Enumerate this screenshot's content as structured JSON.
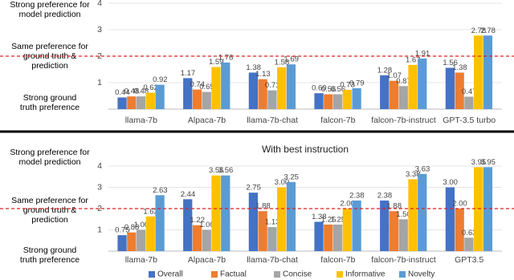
{
  "chart_data": [
    {
      "type": "bar",
      "annotations": [
        [
          "Strong preference for",
          "model prediction"
        ],
        [
          "Same preference for",
          "ground truth &",
          "prediction"
        ],
        [
          "Strong ground",
          "truth preference"
        ]
      ],
      "categories": [
        "llama-7b",
        "Alpaca-7b",
        "llama-7b-chat",
        "falcon-7b",
        "falcon-7b-instruct",
        "GPT-3.5 turbo"
      ],
      "series": [
        {
          "color": "#4472c4",
          "values": [
            0.44,
            1.17,
            1.38,
            0.6,
            1.28,
            1.56
          ],
          "value_labels": [
            "0.44",
            "1.17",
            "1.38",
            "0.60",
            "1.28",
            "1.56"
          ]
        },
        {
          "color": "#ed7d31",
          "values": [
            0.48,
            0.74,
            1.13,
            0.56,
            1.07,
            1.38
          ],
          "value_labels": [
            "0.48",
            "0.74",
            "1.13",
            "0.56",
            "1.07",
            "1.38"
          ]
        },
        {
          "color": "#a5a5a5",
          "values": [
            0.48,
            0.65,
            0.71,
            0.56,
            0.87,
            0.47
          ],
          "value_labels": [
            "0.48",
            "0.65",
            "0.71",
            "0.56",
            "0.87",
            "0.47"
          ]
        },
        {
          "color": "#ffc000",
          "values": [
            0.62,
            1.59,
            1.58,
            0.73,
            1.67,
            2.78
          ],
          "value_labels": [
            "0.62",
            "1.59",
            "1.58",
            "0.73",
            "1.67",
            "2.78"
          ]
        },
        {
          "color": "#5b9bd5",
          "values": [
            0.92,
            1.76,
            1.69,
            0.79,
            1.91,
            2.78
          ],
          "value_labels": [
            "0.92",
            "1.76",
            "1.69",
            "0.79",
            "1.91",
            "2.78"
          ]
        }
      ],
      "ylim": [
        0,
        4
      ],
      "yticks": [
        1,
        2,
        3,
        4
      ],
      "grid": true,
      "reference_line": 2,
      "reference_color": "#e02020"
    },
    {
      "type": "bar",
      "title": "With best instruction",
      "annotations": [
        [
          "Strong preference for",
          "model prediction"
        ],
        [
          "Same preference for",
          "ground truth &",
          "prediction"
        ],
        [
          "Strong ground",
          "truth preference"
        ]
      ],
      "categories": [
        "llama-7b",
        "Alpaca-7b",
        "llama-7b-chat",
        "falcon-7b",
        "falcon-7b-instruct",
        "GPT3.5"
      ],
      "series": [
        {
          "name": "Overall",
          "color": "#4472c4",
          "values": [
            0.75,
            2.44,
            2.75,
            1.38,
            2.38,
            3.0
          ],
          "value_labels": [
            "0.75",
            "2.44",
            "2.75",
            "1.38",
            "2.38",
            "3.00"
          ]
        },
        {
          "name": "Factual",
          "color": "#ed7d31",
          "values": [
            0.88,
            1.22,
            1.88,
            1.25,
            1.88,
            2.0
          ],
          "value_labels": [
            "0.88",
            "1.22",
            "1.88",
            "1.25",
            "1.88",
            "2.00"
          ]
        },
        {
          "name": "Concise",
          "color": "#a5a5a5",
          "values": [
            1.0,
            1.0,
            1.13,
            1.25,
            1.5,
            0.63
          ],
          "value_labels": [
            "1.00",
            "1.00",
            "1.13",
            "1.25",
            "1.50",
            "0.63"
          ]
        },
        {
          "name": "Informative",
          "color": "#ffc000",
          "values": [
            1.63,
            3.56,
            3.0,
            2.0,
            3.38,
            3.95
          ],
          "value_labels": [
            "1.63",
            "3.56",
            "3.00",
            "2.00",
            "3.38",
            "3.95"
          ]
        },
        {
          "name": "Novelty",
          "color": "#5b9bd5",
          "values": [
            2.63,
            3.56,
            3.25,
            2.38,
            3.63,
            3.95
          ],
          "value_labels": [
            "2.63",
            "3.56",
            "3.25",
            "2.38",
            "3.63",
            "3.95"
          ]
        }
      ],
      "ylim": [
        0,
        4
      ],
      "yticks": [
        1,
        2,
        3,
        4
      ],
      "grid": true,
      "reference_line": 2,
      "reference_color": "#e02020",
      "legend": "bottom"
    }
  ]
}
